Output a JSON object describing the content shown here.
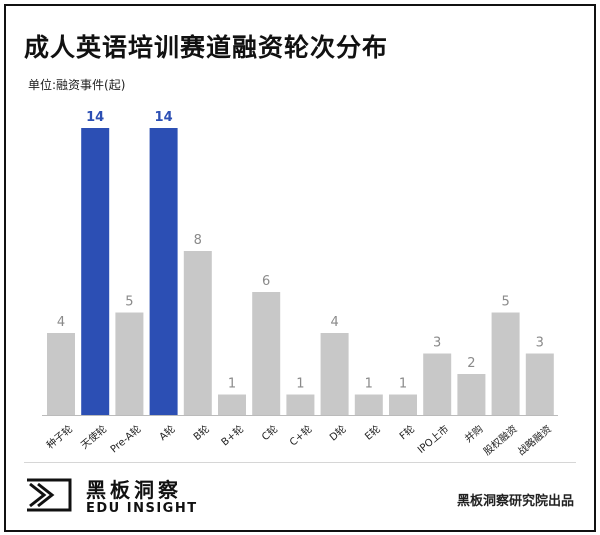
{
  "title": "成人英语培训赛道融资轮次分布",
  "unit_label": "单位:融资事件(起)",
  "logo": {
    "name_cn": "黑板洞察",
    "name_en": "EDU INSIGHT"
  },
  "source": "黑板洞察研究院出品",
  "colors": {
    "highlight": "#2c4fb4",
    "normal": "#c8c8c8",
    "label_highlight": "#2c4fb4",
    "label_normal": "#8a8a8a"
  },
  "chart_data": {
    "type": "bar",
    "categories": [
      "种子轮",
      "天使轮",
      "Pre-A轮",
      "A轮",
      "B轮",
      "B+轮",
      "C轮",
      "C+轮",
      "D轮",
      "E轮",
      "F轮",
      "IPO上市",
      "并购",
      "股权融资",
      "战略融资"
    ],
    "values": [
      4,
      14,
      5,
      14,
      8,
      1,
      6,
      1,
      4,
      1,
      1,
      3,
      2,
      5,
      3
    ],
    "highlighted": [
      "天使轮",
      "A轮"
    ],
    "title": "成人英语培训赛道融资轮次分布",
    "ylabel": "单位:融资事件(起)",
    "ylim": [
      0,
      14
    ],
    "grid": false,
    "legend": "none"
  }
}
